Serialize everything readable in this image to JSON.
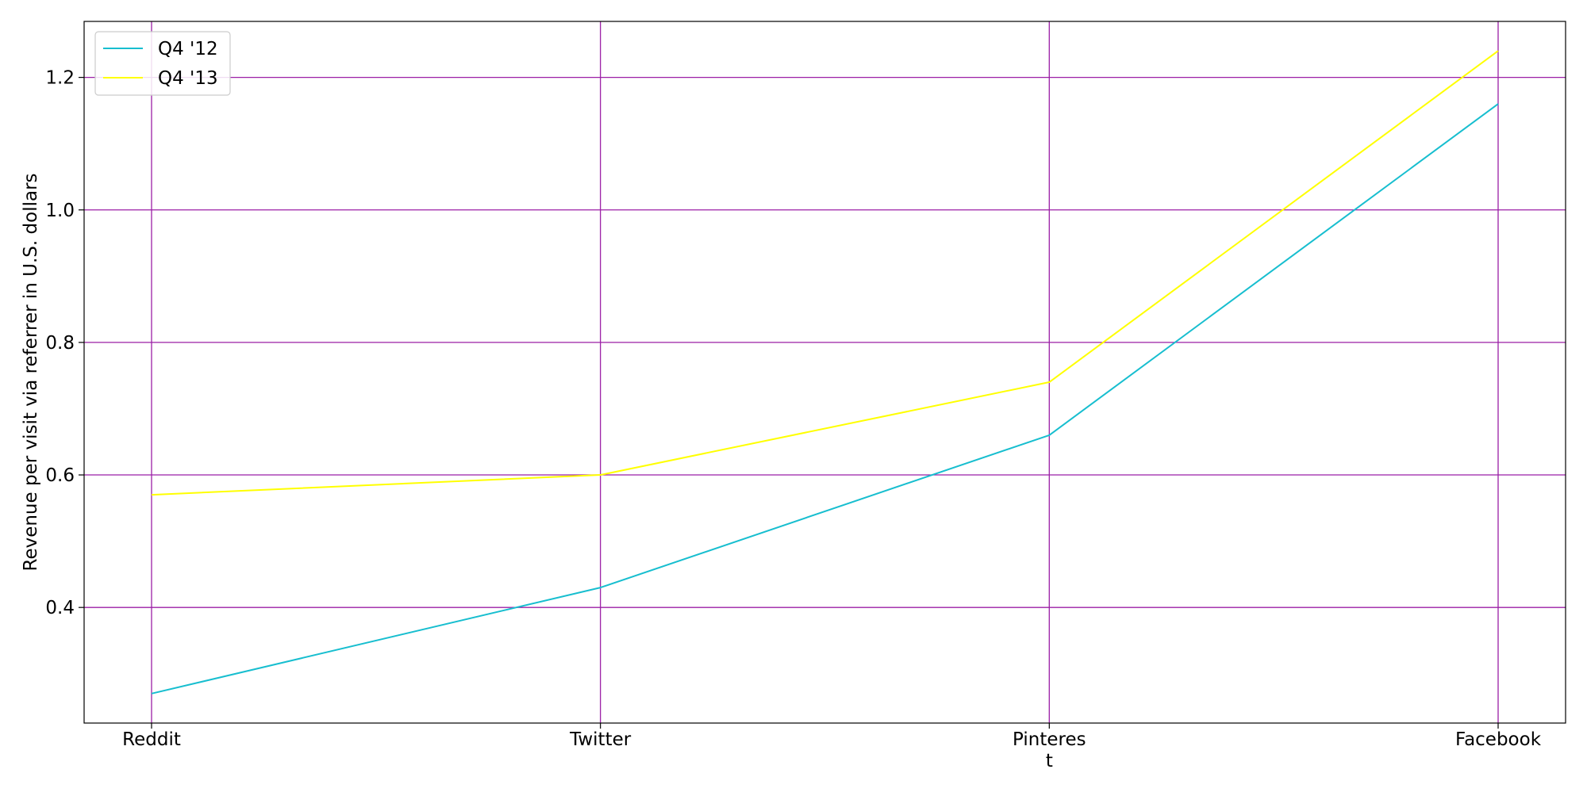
{
  "chart_data": {
    "type": "line",
    "categories": [
      "Reddit",
      "Twitter",
      "Pinteres\nt",
      "Facebook"
    ],
    "series": [
      {
        "name": "Q4 '12",
        "color": "#17becf",
        "values": [
          0.27,
          0.43,
          0.66,
          1.16
        ]
      },
      {
        "name": "Q4 '13",
        "color": "#ffff00",
        "values": [
          0.57,
          0.6,
          0.74,
          1.24
        ]
      }
    ],
    "xlabel": "",
    "ylabel": "Revenue per visit via referrer in U.S. dollars",
    "ylim": [
      0.2255,
      1.2845
    ],
    "yticks": [
      0.4,
      0.6,
      0.8,
      1.0,
      1.2
    ],
    "ytick_labels": [
      "0.4",
      "0.6",
      "0.8",
      "1.0",
      "1.2"
    ],
    "grid": true,
    "grid_color": "#9b1fa6",
    "legend_position": "upper-left"
  }
}
